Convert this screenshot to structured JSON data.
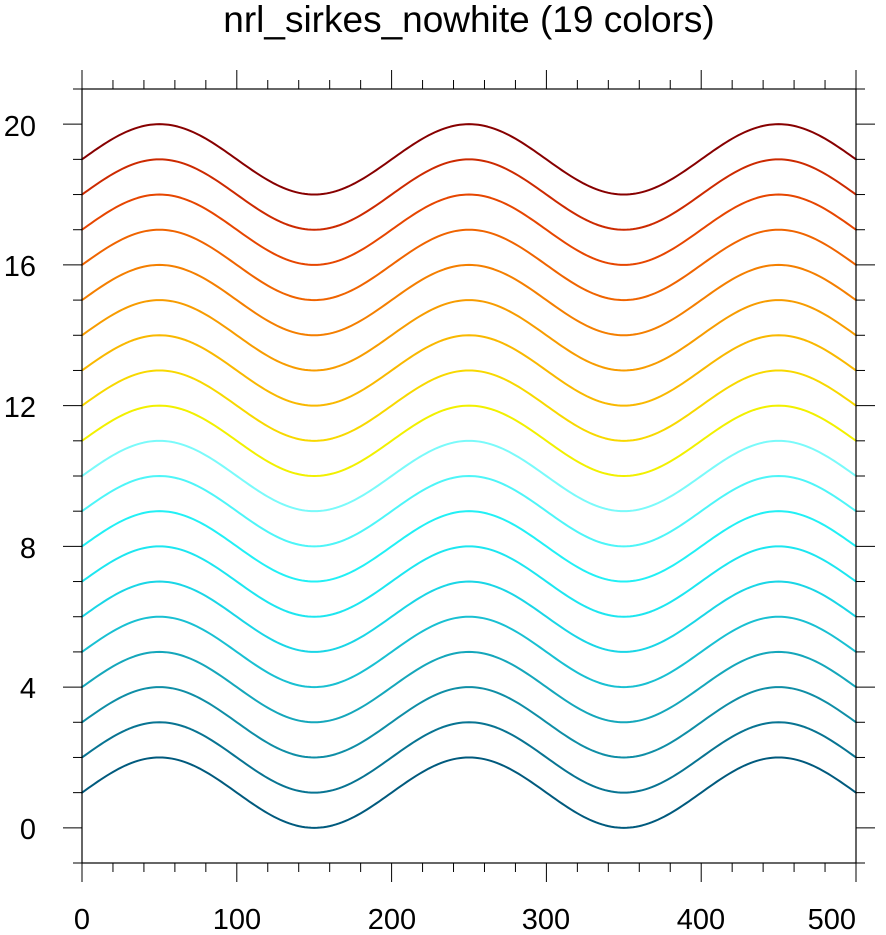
{
  "chart_data": {
    "type": "line",
    "title": "nrl_sirkes_nowhite (19 colors)",
    "xlabel": "",
    "ylabel": "",
    "xlim": [
      0,
      500
    ],
    "ylim": [
      -1,
      21
    ],
    "x_ticks": [
      "0",
      "100",
      "200",
      "300",
      "400",
      "500"
    ],
    "y_ticks": [
      "0",
      "4",
      "8",
      "12",
      "16",
      "20"
    ],
    "grid": false,
    "legend": "none",
    "curve": {
      "function": "y = offset + 1 + sin(2*pi*x/200)",
      "x_start": 0,
      "x_end": 500,
      "x_step": 2,
      "period": 200,
      "amplitude": 1
    },
    "series": [
      {
        "offset": 0,
        "color": "#005a7d"
      },
      {
        "offset": 1,
        "color": "#087492"
      },
      {
        "offset": 2,
        "color": "#0f8ea6"
      },
      {
        "offset": 3,
        "color": "#15a7bb"
      },
      {
        "offset": 4,
        "color": "#19c0d2"
      },
      {
        "offset": 5,
        "color": "#1ad6e6"
      },
      {
        "offset": 6,
        "color": "#1de6f0"
      },
      {
        "offset": 7,
        "color": "#22f0f5"
      },
      {
        "offset": 8,
        "color": "#4ef5f8"
      },
      {
        "offset": 9,
        "color": "#7afafa"
      },
      {
        "offset": 10,
        "color": "#f2f000"
      },
      {
        "offset": 11,
        "color": "#f8d800"
      },
      {
        "offset": 12,
        "color": "#f9b800"
      },
      {
        "offset": 13,
        "color": "#f79c00"
      },
      {
        "offset": 14,
        "color": "#f47f00"
      },
      {
        "offset": 15,
        "color": "#ef6400"
      },
      {
        "offset": 16,
        "color": "#e64600"
      },
      {
        "offset": 17,
        "color": "#cc2a00"
      },
      {
        "offset": 18,
        "color": "#870000"
      }
    ]
  }
}
